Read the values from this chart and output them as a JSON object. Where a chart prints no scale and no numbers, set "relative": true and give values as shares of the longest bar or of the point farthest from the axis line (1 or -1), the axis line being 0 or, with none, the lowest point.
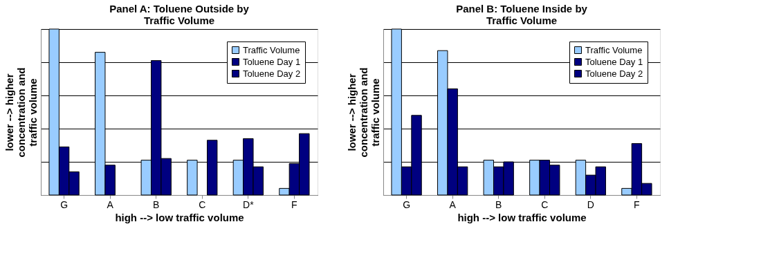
{
  "chart_data": [
    {
      "type": "bar",
      "title": [
        "Panel A:  Toluene Outside by",
        "Traffic Volume"
      ],
      "xlabel": "high --> low traffic volume",
      "ylabel": [
        "lower --> higher",
        "concentration and",
        "traffic volume"
      ],
      "relative": true,
      "grid": "y",
      "legend": "top right",
      "categories": [
        "G",
        "A",
        "B",
        "C",
        "D*",
        "F"
      ],
      "series": [
        {
          "name": "Traffic Volume",
          "color": "#99ccff",
          "values": [
            1,
            0.86,
            0.21,
            0.21,
            0.21,
            0.04
          ]
        },
        {
          "name": "Toluene Day 1",
          "color": "#000080",
          "values": [
            0.29,
            0.18,
            0.81,
            null,
            0.34,
            0.19
          ]
        },
        {
          "name": "Toluene Day 2",
          "color": "#000080",
          "values": [
            0.14,
            null,
            0.22,
            0.33,
            0.17,
            0.37
          ]
        }
      ]
    },
    {
      "type": "bar",
      "title": [
        "Panel B:  Toluene Inside by",
        "Traffic Volume"
      ],
      "xlabel": "high --> low traffic volume",
      "ylabel": [
        "lower --> higher",
        "concentration and",
        "traffic volume"
      ],
      "relative": true,
      "grid": "y",
      "legend": "top right",
      "categories": [
        "G",
        "A",
        "B",
        "C",
        "D",
        "F"
      ],
      "series": [
        {
          "name": "Traffic Volume",
          "color": "#99ccff",
          "values": [
            1,
            0.87,
            0.21,
            0.21,
            0.21,
            0.04
          ]
        },
        {
          "name": "Toluene Day 1",
          "color": "#000080",
          "values": [
            0.17,
            0.64,
            0.17,
            0.21,
            0.12,
            0.31
          ]
        },
        {
          "name": "Toluene Day 2",
          "color": "#000080",
          "values": [
            0.48,
            0.17,
            0.2,
            0.18,
            0.17,
            0.07
          ]
        }
      ]
    }
  ]
}
